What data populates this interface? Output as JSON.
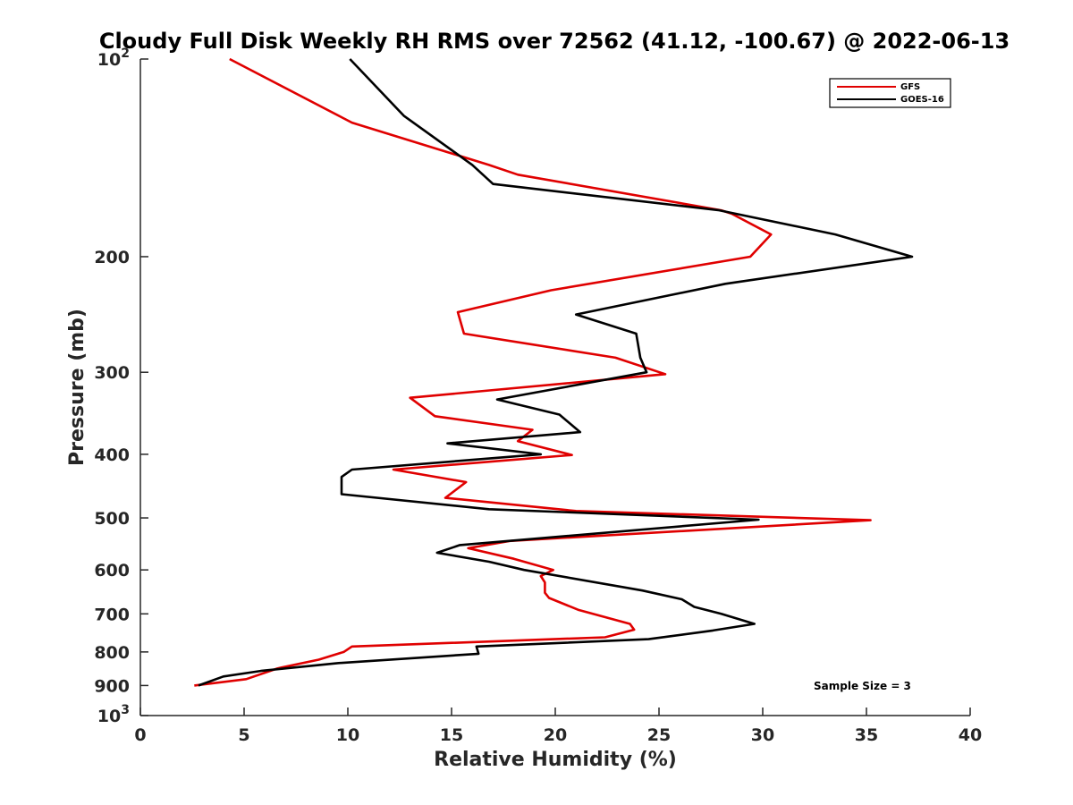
{
  "chart_data": {
    "type": "line",
    "title": "Cloudy Full Disk Weekly RH RMS over 72562 (41.12, -100.67) @ 2022-06-13",
    "xlabel": "Relative Humidity (%)",
    "ylabel": "Pressure (mb)",
    "xlim": [
      0,
      40
    ],
    "ylim": [
      100,
      1000
    ],
    "yscale": "log",
    "y_inverted": true,
    "grid": false,
    "legend_placement": "top-right",
    "x_ticks": [
      0,
      5,
      10,
      15,
      20,
      25,
      30,
      35,
      40
    ],
    "x_tick_labels": [
      "0",
      "5",
      "10",
      "15",
      "20",
      "25",
      "30",
      "35",
      "40"
    ],
    "y_ticks": [
      100,
      200,
      300,
      400,
      500,
      600,
      700,
      800,
      900,
      1000
    ],
    "y_tick_labels": [
      {
        "base": "10",
        "exp": "2"
      },
      {
        "base": "200",
        "exp": ""
      },
      {
        "base": "300",
        "exp": ""
      },
      {
        "base": "400",
        "exp": ""
      },
      {
        "base": "500",
        "exp": ""
      },
      {
        "base": "600",
        "exp": ""
      },
      {
        "base": "700",
        "exp": ""
      },
      {
        "base": "800",
        "exp": ""
      },
      {
        "base": "900",
        "exp": ""
      },
      {
        "base": "10",
        "exp": "3"
      }
    ],
    "annotation": "Sample Size = 3",
    "series": [
      {
        "name": "GFS",
        "color": "#e00000",
        "points": [
          [
            4.3,
            100
          ],
          [
            10.2,
            125
          ],
          [
            16.8,
            145
          ],
          [
            18.2,
            150
          ],
          [
            28.0,
            170
          ],
          [
            28.5,
            172
          ],
          [
            30.4,
            185
          ],
          [
            29.4,
            200
          ],
          [
            19.8,
            225
          ],
          [
            15.3,
            243
          ],
          [
            15.6,
            262
          ],
          [
            22.9,
            285
          ],
          [
            25.3,
            302
          ],
          [
            13.0,
            328
          ],
          [
            14.2,
            350
          ],
          [
            18.9,
            367
          ],
          [
            18.2,
            382
          ],
          [
            20.8,
            401
          ],
          [
            12.2,
            422
          ],
          [
            15.7,
            441
          ],
          [
            14.7,
            466
          ],
          [
            21.0,
            488
          ],
          [
            35.2,
            504
          ],
          [
            17.8,
            542
          ],
          [
            15.8,
            556
          ],
          [
            18.0,
            577
          ],
          [
            19.9,
            600
          ],
          [
            19.3,
            613
          ],
          [
            19.5,
            627
          ],
          [
            19.5,
            650
          ],
          [
            19.7,
            662
          ],
          [
            21.1,
            690
          ],
          [
            23.6,
            725
          ],
          [
            23.8,
            740
          ],
          [
            22.4,
            760
          ],
          [
            10.2,
            785
          ],
          [
            9.8,
            800
          ],
          [
            8.6,
            822
          ],
          [
            6.8,
            845
          ],
          [
            6.6,
            848
          ],
          [
            5.1,
            880
          ],
          [
            2.6,
            900
          ]
        ]
      },
      {
        "name": "GOES-16",
        "color": "#000000",
        "points": [
          [
            10.1,
            100
          ],
          [
            12.7,
            122
          ],
          [
            16.0,
            145
          ],
          [
            17.0,
            155
          ],
          [
            27.9,
            170
          ],
          [
            33.5,
            185
          ],
          [
            37.2,
            200
          ],
          [
            28.2,
            220
          ],
          [
            21.0,
            245
          ],
          [
            23.9,
            262
          ],
          [
            24.1,
            285
          ],
          [
            24.4,
            300
          ],
          [
            17.2,
            330
          ],
          [
            20.2,
            348
          ],
          [
            21.2,
            370
          ],
          [
            14.8,
            385
          ],
          [
            19.3,
            400
          ],
          [
            10.2,
            422
          ],
          [
            9.7,
            433
          ],
          [
            9.7,
            460
          ],
          [
            16.8,
            485
          ],
          [
            29.8,
            503
          ],
          [
            15.4,
            550
          ],
          [
            14.3,
            565
          ],
          [
            16.8,
            583
          ],
          [
            18.5,
            600
          ],
          [
            24.2,
            645
          ],
          [
            26.1,
            665
          ],
          [
            26.7,
            683
          ],
          [
            28.0,
            700
          ],
          [
            29.6,
            725
          ],
          [
            27.6,
            742
          ],
          [
            24.5,
            765
          ],
          [
            16.2,
            785
          ],
          [
            16.3,
            805
          ],
          [
            9.5,
            832
          ],
          [
            5.8,
            855
          ],
          [
            4.0,
            872
          ],
          [
            2.8,
            900
          ]
        ]
      }
    ]
  }
}
